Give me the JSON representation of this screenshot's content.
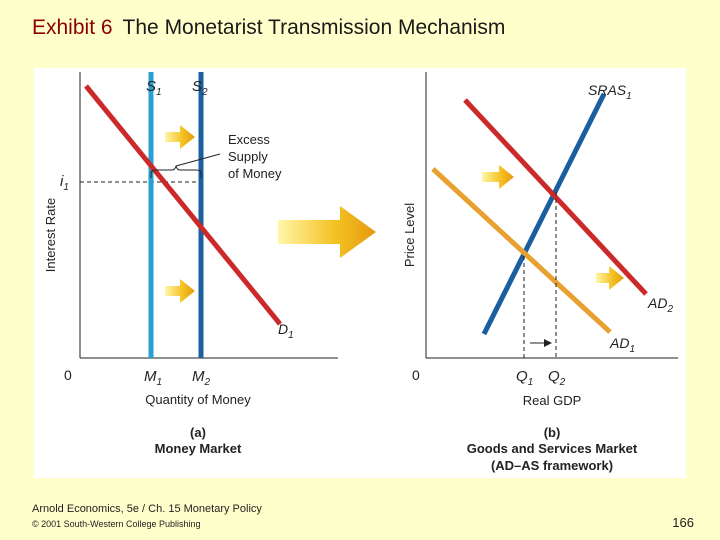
{
  "title": {
    "exhibit": "Exhibit 6",
    "text": "The Monetarist Transmission Mechanism"
  },
  "panel_a": {
    "caption_letter": "(a)",
    "caption": "Money Market",
    "y_axis_label": "Interest Rate",
    "x_axis_label": "Quantity of Money",
    "origin": "0",
    "i1_label": "i",
    "i1_sub": "1",
    "s1_label": "S",
    "s1_sub": "1",
    "s2_label": "S",
    "s2_sub": "2",
    "d1_label": "D",
    "d1_sub": "1",
    "m1_label": "M",
    "m1_sub": "1",
    "m2_label": "M",
    "m2_sub": "2",
    "excess_line1": "Excess",
    "excess_line2": "Supply",
    "excess_line3": "of Money"
  },
  "panel_b": {
    "caption_letter": "(b)",
    "caption_line1": "Goods and Services Market",
    "caption_line2": "(AD–AS framework)",
    "y_axis_label": "Price Level",
    "x_axis_label": "Real GDP",
    "origin": "0",
    "sras_label": "SRAS",
    "sras_sub": "1",
    "ad1_label": "AD",
    "ad1_sub": "1",
    "ad2_label": "AD",
    "ad2_sub": "2",
    "q1_label": "Q",
    "q1_sub": "1",
    "q2_label": "Q",
    "q2_sub": "2"
  },
  "colors": {
    "demand_red": "#cc2a2a",
    "supply_light_blue": "#2a9fd6",
    "supply_dark_blue": "#1a5fa0",
    "ad1_orange": "#e8a030",
    "arrow_yellow": "#f4c020",
    "background": "#ffffcc"
  },
  "footer": {
    "line1": "Arnold Economics, 5e / Ch. 15  Monetary Policy",
    "line2": "© 2001 South-Western College Publishing",
    "page": "166"
  }
}
